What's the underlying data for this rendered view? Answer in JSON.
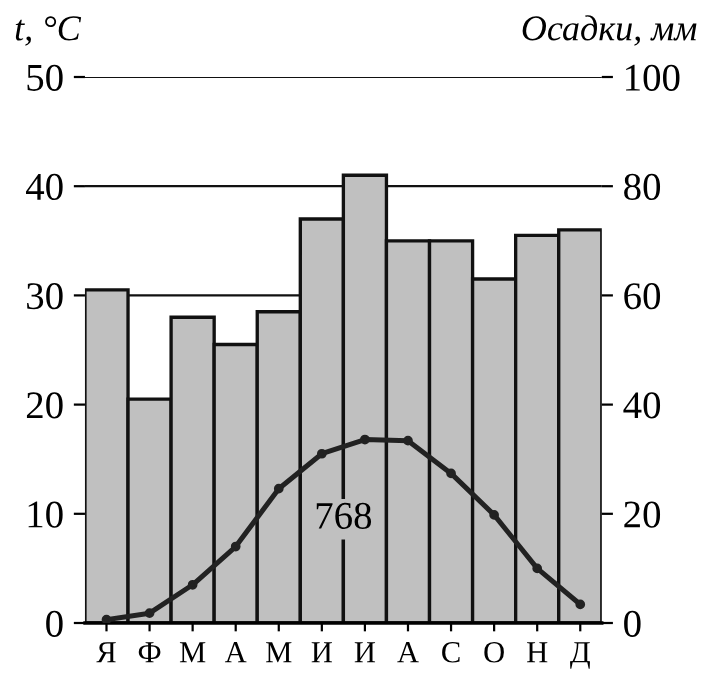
{
  "chart_data": {
    "type": "bar",
    "categories": [
      "Я",
      "Ф",
      "М",
      "А",
      "М",
      "И",
      "И",
      "А",
      "С",
      "О",
      "Н",
      "Д"
    ],
    "series": [
      {
        "axis": "y2",
        "color": "#c0c0c0",
        "values": [
          61,
          41,
          56,
          51,
          57,
          74,
          82,
          70,
          70,
          63,
          71,
          72
        ]
      },
      {
        "type": "line",
        "axis": "y",
        "color": "#222222",
        "values": [
          0.3,
          0.9,
          3.5,
          7,
          12.3,
          15.5,
          16.8,
          16.7,
          13.7,
          9.9,
          5,
          1.7
        ]
      }
    ],
    "ylabel": "t, °C",
    "y2label": "Осадки, мм",
    "ylim": [
      0,
      50
    ],
    "yticks": [
      0,
      10,
      20,
      30,
      40,
      50
    ],
    "y2lim": [
      0,
      100
    ],
    "y2ticks": [
      0,
      20,
      40,
      60,
      80,
      100
    ],
    "annotations": [
      "768"
    ],
    "grid": "y",
    "marker": "circle",
    "line_style": "solid"
  }
}
